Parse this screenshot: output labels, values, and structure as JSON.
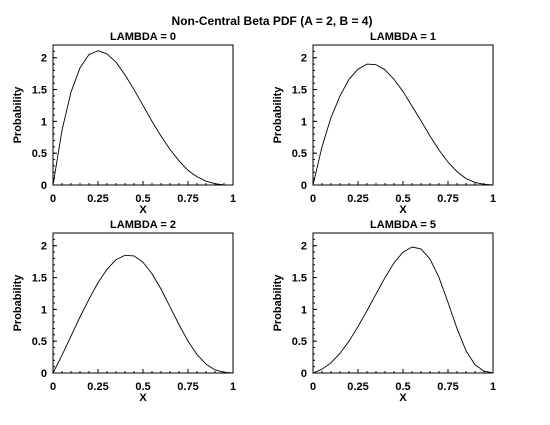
{
  "title": "Non-Central Beta PDF (A = 2, B = 4)",
  "chart_data": [
    {
      "type": "line",
      "title": "LAMBDA = 0",
      "xlabel": "X",
      "ylabel": "Probability",
      "xlim": [
        0,
        1
      ],
      "ylim": [
        0,
        2.2
      ],
      "xticks": [
        "0",
        "0.25",
        "0.5",
        "0.75",
        "1"
      ],
      "yticks": [
        "0",
        "0.5",
        "1",
        "1.5",
        "2"
      ],
      "grid": false,
      "series": [
        {
          "x": [
            0.0,
            0.05,
            0.1,
            0.15,
            0.2,
            0.25,
            0.3,
            0.35,
            0.4,
            0.45,
            0.5,
            0.55,
            0.6,
            0.65,
            0.7,
            0.75,
            0.8,
            0.85,
            0.9,
            0.95,
            1.0
          ],
          "y": [
            0.0,
            0.86,
            1.46,
            1.84,
            2.05,
            2.11,
            2.06,
            1.93,
            1.73,
            1.5,
            1.25,
            1.0,
            0.77,
            0.56,
            0.38,
            0.23,
            0.13,
            0.06,
            0.02,
            0.0,
            0.0
          ]
        }
      ]
    },
    {
      "type": "line",
      "title": "LAMBDA = 1",
      "xlabel": "X",
      "ylabel": "Probability",
      "xlim": [
        0,
        1
      ],
      "ylim": [
        0,
        2.2
      ],
      "xticks": [
        "0",
        "0.25",
        "0.5",
        "0.75",
        "1"
      ],
      "yticks": [
        "0",
        "0.5",
        "1",
        "1.5",
        "2"
      ],
      "grid": false,
      "series": [
        {
          "x": [
            0.0,
            0.05,
            0.1,
            0.15,
            0.2,
            0.25,
            0.3,
            0.35,
            0.4,
            0.45,
            0.5,
            0.55,
            0.6,
            0.65,
            0.7,
            0.75,
            0.8,
            0.85,
            0.9,
            0.95,
            1.0
          ],
          "y": [
            0.0,
            0.6,
            1.06,
            1.4,
            1.66,
            1.82,
            1.9,
            1.89,
            1.81,
            1.66,
            1.47,
            1.24,
            1.01,
            0.77,
            0.55,
            0.36,
            0.21,
            0.1,
            0.04,
            0.01,
            0.0
          ]
        }
      ]
    },
    {
      "type": "line",
      "title": "LAMBDA = 2",
      "xlabel": "X",
      "ylabel": "Probability",
      "xlim": [
        0,
        1
      ],
      "ylim": [
        0,
        2.2
      ],
      "xticks": [
        "0",
        "0.25",
        "0.5",
        "0.75",
        "1"
      ],
      "yticks": [
        "0",
        "0.5",
        "1",
        "1.5",
        "2"
      ],
      "grid": false,
      "series": [
        {
          "x": [
            0.0,
            0.05,
            0.1,
            0.15,
            0.2,
            0.25,
            0.3,
            0.35,
            0.4,
            0.45,
            0.5,
            0.55,
            0.6,
            0.65,
            0.7,
            0.75,
            0.8,
            0.85,
            0.9,
            0.95,
            1.0
          ],
          "y": [
            0.0,
            0.28,
            0.58,
            0.88,
            1.16,
            1.42,
            1.63,
            1.78,
            1.85,
            1.84,
            1.74,
            1.56,
            1.32,
            1.04,
            0.76,
            0.5,
            0.29,
            0.14,
            0.05,
            0.01,
            0.0
          ]
        }
      ]
    },
    {
      "type": "line",
      "title": "LAMBDA = 5",
      "xlabel": "X",
      "ylabel": "Probability",
      "xlim": [
        0,
        1
      ],
      "ylim": [
        0,
        2.2
      ],
      "xticks": [
        "0",
        "0.25",
        "0.5",
        "0.75",
        "1"
      ],
      "yticks": [
        "0",
        "0.5",
        "1",
        "1.5",
        "2"
      ],
      "grid": false,
      "series": [
        {
          "x": [
            0.0,
            0.05,
            0.1,
            0.15,
            0.2,
            0.25,
            0.3,
            0.35,
            0.4,
            0.45,
            0.5,
            0.55,
            0.6,
            0.65,
            0.7,
            0.75,
            0.8,
            0.85,
            0.9,
            0.95,
            1.0
          ],
          "y": [
            0.0,
            0.06,
            0.16,
            0.31,
            0.5,
            0.73,
            0.98,
            1.24,
            1.5,
            1.73,
            1.9,
            1.98,
            1.95,
            1.79,
            1.5,
            1.11,
            0.7,
            0.35,
            0.13,
            0.03,
            0.0
          ]
        }
      ]
    }
  ]
}
